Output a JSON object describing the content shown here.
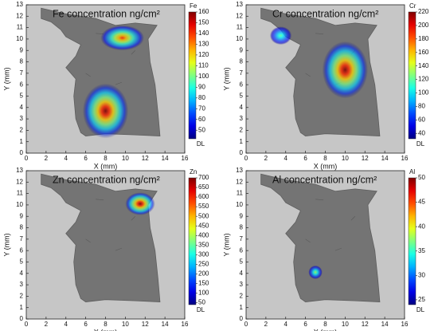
{
  "chart_data": [
    {
      "type": "heatmap",
      "title": "Fe concentration ng/cm²",
      "xlabel": "X (mm)",
      "ylabel": "Y (mm)",
      "xlim": [
        0,
        16
      ],
      "xticks": [
        0,
        2,
        4,
        6,
        8,
        10,
        12,
        14,
        16
      ],
      "ylim": [
        0,
        13
      ],
      "yticks": [
        0,
        1,
        2,
        3,
        4,
        5,
        6,
        7,
        8,
        9,
        10,
        11,
        12,
        13
      ],
      "colorbar_label": "Fe",
      "colorbar_bottom_label": "DL",
      "clim": [
        42,
        160
      ],
      "cticks": [
        50,
        60,
        70,
        80,
        90,
        100,
        110,
        120,
        130,
        140,
        150,
        160
      ],
      "hotspots": [
        {
          "x": 8,
          "y": 3.7,
          "rx": 2.3,
          "ry": 2.4,
          "value": 160
        },
        {
          "x": 9.7,
          "y": 10.1,
          "rx": 2.2,
          "ry": 1.1,
          "value": 140
        }
      ]
    },
    {
      "type": "heatmap",
      "title": "Cr concentration ng/cm²",
      "xlabel": "X (mm)",
      "ylabel": "Y (mm)",
      "xlim": [
        0,
        16
      ],
      "xticks": [
        0,
        2,
        4,
        6,
        8,
        10,
        12,
        14,
        16
      ],
      "ylim": [
        0,
        13
      ],
      "yticks": [
        0,
        1,
        2,
        3,
        4,
        5,
        6,
        7,
        8,
        9,
        10,
        11,
        12,
        13
      ],
      "colorbar_label": "Cr",
      "colorbar_bottom_label": "DL",
      "clim": [
        32,
        220
      ],
      "cticks": [
        40,
        60,
        80,
        100,
        120,
        140,
        160,
        180,
        200,
        220
      ],
      "hotspots": [
        {
          "x": 3.5,
          "y": 10.3,
          "rx": 1.1,
          "ry": 0.8,
          "value": 120
        },
        {
          "x": 10,
          "y": 7.3,
          "rx": 2.3,
          "ry": 2.5,
          "value": 220
        }
      ]
    },
    {
      "type": "heatmap",
      "title": "Zn concentration ng/cm²",
      "xlabel": "X (mm)",
      "ylabel": "Y (mm)",
      "xlim": [
        0,
        16
      ],
      "xticks": [
        0,
        2,
        4,
        6,
        8,
        10,
        12,
        14,
        16
      ],
      "ylim": [
        0,
        13
      ],
      "yticks": [
        0,
        1,
        2,
        3,
        4,
        5,
        6,
        7,
        8,
        9,
        10,
        11,
        12,
        13
      ],
      "colorbar_label": "Zn",
      "colorbar_bottom_label": "DL",
      "clim": [
        40,
        700
      ],
      "cticks": [
        50,
        100,
        150,
        200,
        250,
        300,
        350,
        400,
        450,
        500,
        550,
        600,
        650,
        700
      ],
      "hotspots": [
        {
          "x": 11.5,
          "y": 10.1,
          "rx": 1.5,
          "ry": 1.0,
          "value": 700
        }
      ]
    },
    {
      "type": "heatmap",
      "title": "Al concentration ng/cm²",
      "xlabel": "X (mm)",
      "ylabel": "Y (mm)",
      "xlim": [
        0,
        16
      ],
      "xticks": [
        0,
        2,
        4,
        6,
        8,
        10,
        12,
        14,
        16
      ],
      "ylim": [
        0,
        13
      ],
      "yticks": [
        0,
        1,
        2,
        3,
        4,
        5,
        6,
        7,
        8,
        9,
        10,
        11,
        12,
        13
      ],
      "colorbar_label": "Al",
      "colorbar_bottom_label": "DL",
      "clim": [
        24,
        50
      ],
      "cticks": [
        25,
        30,
        35,
        40,
        45,
        50
      ],
      "hotspots": [
        {
          "x": 7,
          "y": 4.1,
          "rx": 0.7,
          "ry": 0.6,
          "value": 38
        }
      ]
    }
  ]
}
